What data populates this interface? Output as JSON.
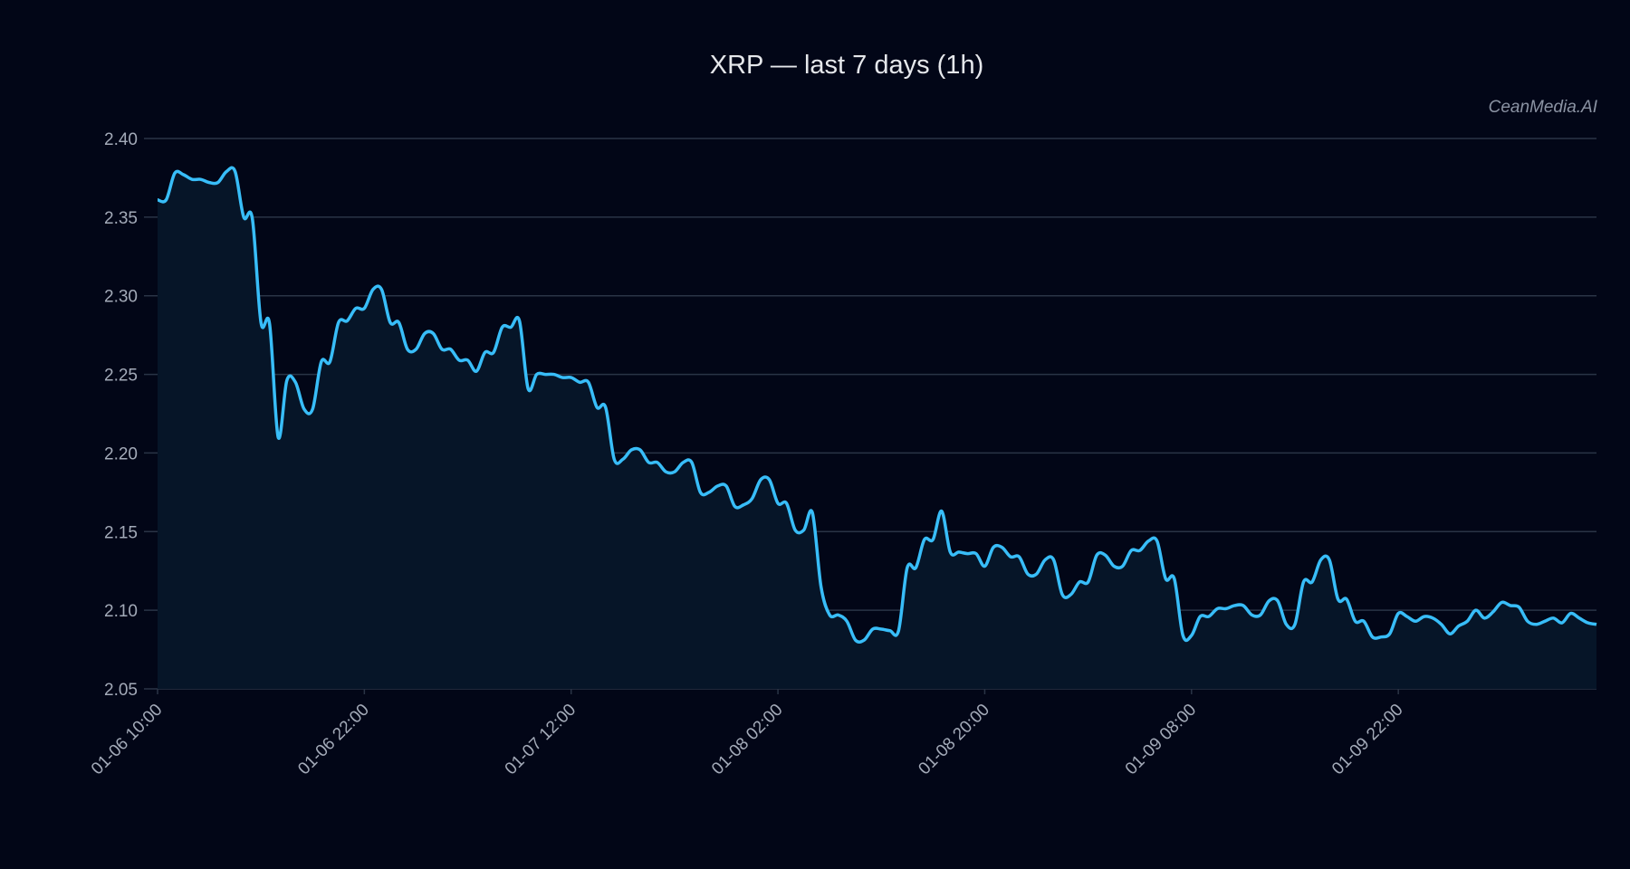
{
  "chart_data": {
    "type": "line",
    "title": "XRP — last 7 days (1h)",
    "watermark": "CeanMedia.AI",
    "xlabel": "",
    "ylabel": "",
    "ylim": [
      2.05,
      2.4
    ],
    "yticks": [
      2.05,
      2.1,
      2.15,
      2.2,
      2.25,
      2.3,
      2.35,
      2.4
    ],
    "ytick_labels": [
      "2.05",
      "2.10",
      "2.15",
      "2.20",
      "2.25",
      "2.30",
      "2.35",
      "2.40"
    ],
    "xtick_labels": [
      "01-06 10:00",
      "01-06 22:00",
      "01-07 12:00",
      "01-08 02:00",
      "01-08 20:00",
      "01-09 08:00",
      "01-09 22:00"
    ],
    "xtick_step_points": 24,
    "grid": "horizontal",
    "area_fill": true,
    "colors": {
      "background": "#020617",
      "line": "#38bdf8",
      "fill": "#061528",
      "grid": "#2a3446"
    },
    "series": [
      {
        "values": [
          2.361,
          2.361,
          2.378,
          2.377,
          2.374,
          2.374,
          2.372,
          2.372,
          2.379,
          2.379,
          2.35,
          2.349,
          2.283,
          2.282,
          2.21,
          2.246,
          2.245,
          2.228,
          2.228,
          2.258,
          2.258,
          2.283,
          2.284,
          2.292,
          2.292,
          2.304,
          2.304,
          2.283,
          2.283,
          2.266,
          2.266,
          2.276,
          2.276,
          2.266,
          2.266,
          2.259,
          2.259,
          2.252,
          2.264,
          2.264,
          2.28,
          2.28,
          2.284,
          2.241,
          2.25,
          2.25,
          2.25,
          2.248,
          2.248,
          2.245,
          2.245,
          2.229,
          2.229,
          2.196,
          2.196,
          2.202,
          2.202,
          2.194,
          2.194,
          2.188,
          2.188,
          2.194,
          2.194,
          2.175,
          2.175,
          2.179,
          2.179,
          2.166,
          2.167,
          2.171,
          2.183,
          2.183,
          2.168,
          2.168,
          2.151,
          2.151,
          2.162,
          2.115,
          2.097,
          2.097,
          2.093,
          2.081,
          2.081,
          2.088,
          2.088,
          2.087,
          2.087,
          2.127,
          2.127,
          2.145,
          2.145,
          2.163,
          2.137,
          2.137,
          2.136,
          2.136,
          2.128,
          2.14,
          2.14,
          2.134,
          2.134,
          2.123,
          2.123,
          2.132,
          2.132,
          2.11,
          2.11,
          2.118,
          2.118,
          2.135,
          2.135,
          2.128,
          2.128,
          2.138,
          2.138,
          2.144,
          2.144,
          2.12,
          2.12,
          2.084,
          2.084,
          2.096,
          2.096,
          2.101,
          2.101,
          2.103,
          2.103,
          2.097,
          2.097,
          2.106,
          2.106,
          2.091,
          2.091,
          2.118,
          2.118,
          2.132,
          2.132,
          2.107,
          2.107,
          2.093,
          2.093,
          2.083,
          2.083,
          2.085,
          2.098,
          2.096,
          2.093,
          2.096,
          2.095,
          2.091,
          2.085,
          2.09,
          2.093,
          2.1,
          2.095,
          2.099,
          2.105,
          2.103,
          2.102,
          2.093,
          2.091,
          2.093,
          2.095,
          2.092,
          2.098,
          2.095,
          2.092,
          2.091
        ]
      }
    ]
  }
}
